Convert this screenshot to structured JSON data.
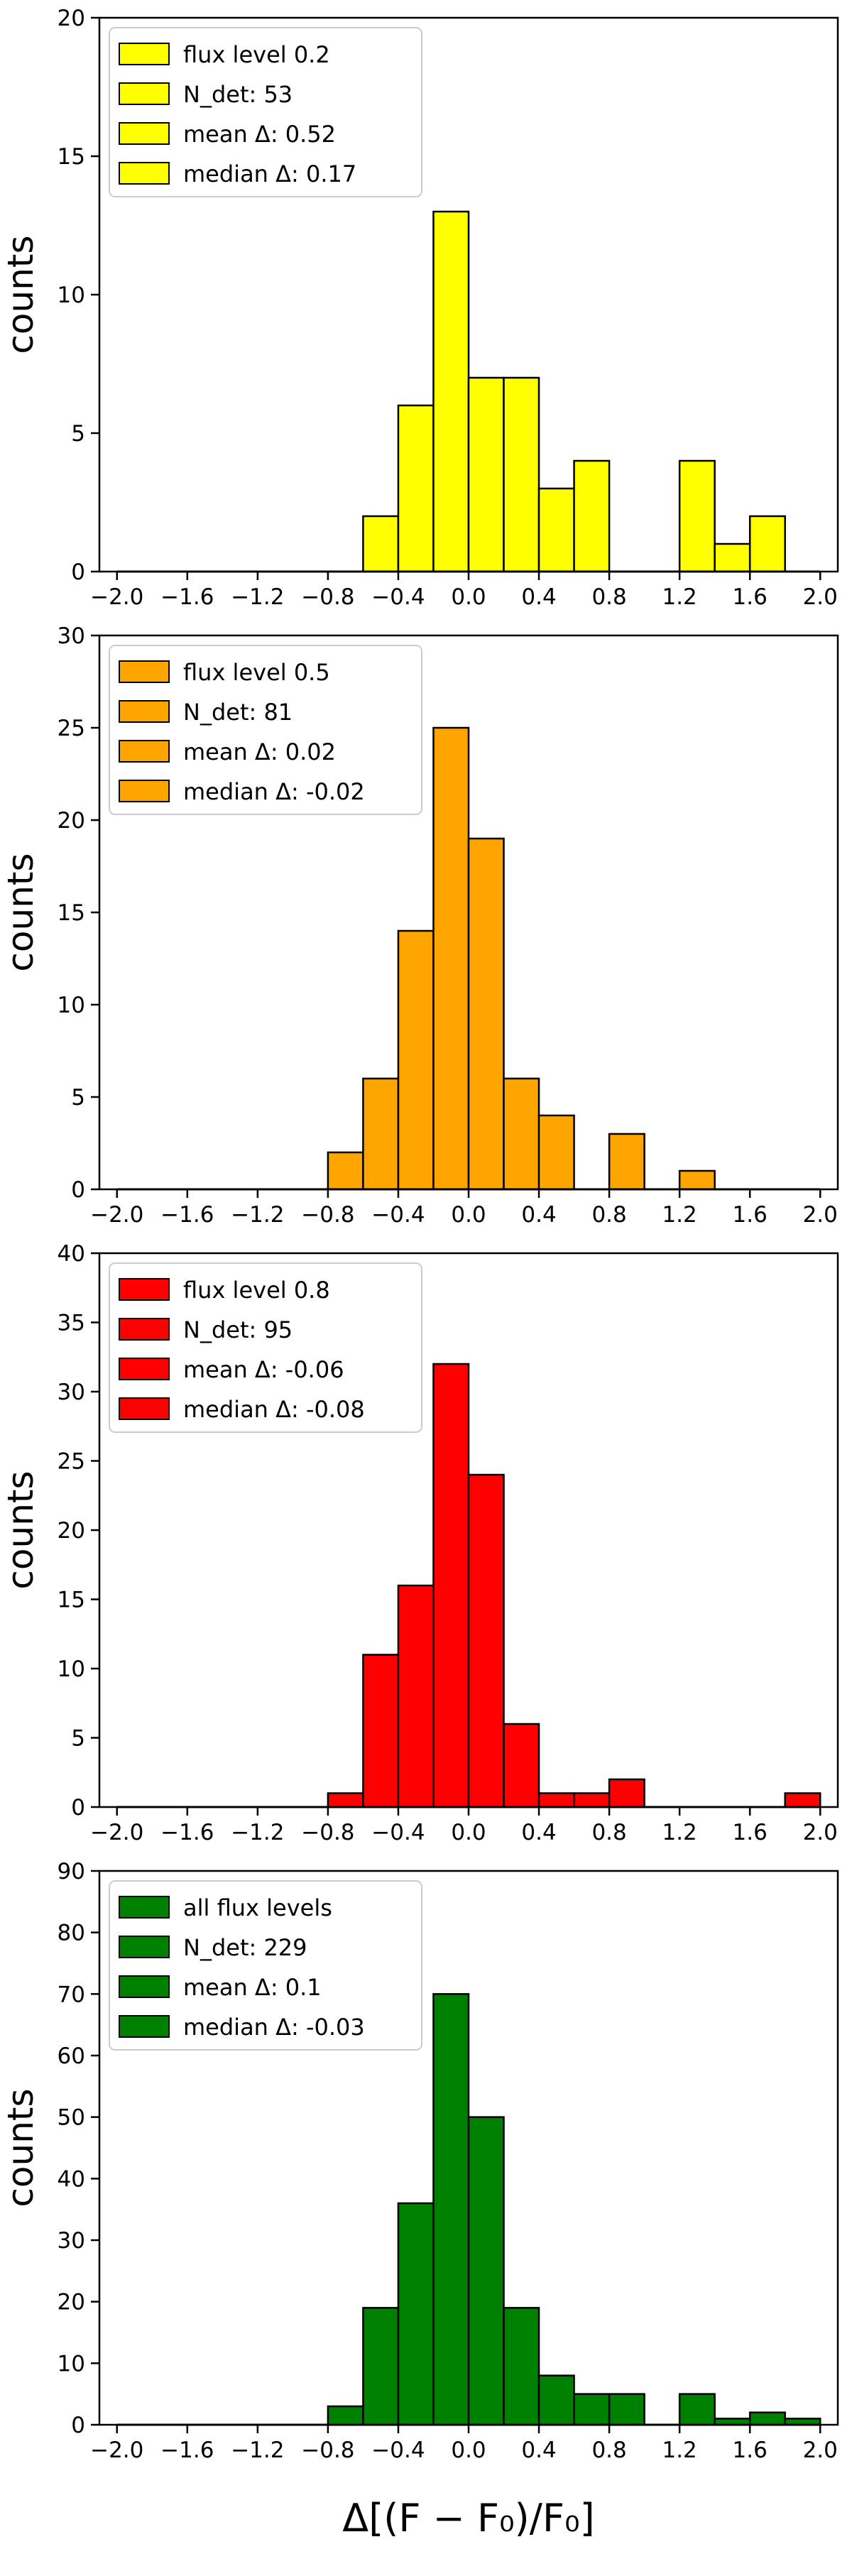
{
  "chart_data": [
    {
      "type": "bar",
      "ylabel": "counts",
      "xlabel": "",
      "xlim": [
        -2.1,
        2.1
      ],
      "ylim": [
        0,
        20
      ],
      "xticks": [
        -2.0,
        -1.6,
        -1.2,
        -0.8,
        -0.4,
        0.0,
        0.4,
        0.8,
        1.2,
        1.6,
        2.0
      ],
      "xtick_labels": [
        "−2.0",
        "−1.6",
        "−1.2",
        "−0.8",
        "−0.4",
        "0.0",
        "0.4",
        "0.8",
        "1.2",
        "1.6",
        "2.0"
      ],
      "yticks": [
        0,
        5,
        10,
        15,
        20
      ],
      "bin_edges": [
        -2.0,
        -1.8,
        -1.6,
        -1.4,
        -1.2,
        -1.0,
        -0.8,
        -0.6,
        -0.4,
        -0.2,
        0.0,
        0.2,
        0.4,
        0.6,
        0.8,
        1.0,
        1.2,
        1.4,
        1.6,
        1.8,
        2.0
      ],
      "values": [
        0,
        0,
        0,
        0,
        0,
        0,
        0,
        2,
        6,
        13,
        7,
        7,
        3,
        4,
        0,
        0,
        4,
        1,
        2,
        0
      ],
      "color": "#ffff00",
      "legend": [
        "flux level 0.2",
        "N_det: 53",
        "mean Δ: 0.52",
        "median Δ: 0.17"
      ],
      "legend_placement": "top-left",
      "grid": false
    },
    {
      "type": "bar",
      "ylabel": "counts",
      "xlabel": "",
      "xlim": [
        -2.1,
        2.1
      ],
      "ylim": [
        0,
        30
      ],
      "xticks": [
        -2.0,
        -1.6,
        -1.2,
        -0.8,
        -0.4,
        0.0,
        0.4,
        0.8,
        1.2,
        1.6,
        2.0
      ],
      "xtick_labels": [
        "−2.0",
        "−1.6",
        "−1.2",
        "−0.8",
        "−0.4",
        "0.0",
        "0.4",
        "0.8",
        "1.2",
        "1.6",
        "2.0"
      ],
      "yticks": [
        0,
        5,
        10,
        15,
        20,
        25,
        30
      ],
      "bin_edges": [
        -2.0,
        -1.8,
        -1.6,
        -1.4,
        -1.2,
        -1.0,
        -0.8,
        -0.6,
        -0.4,
        -0.2,
        0.0,
        0.2,
        0.4,
        0.6,
        0.8,
        1.0,
        1.2,
        1.4,
        1.6,
        1.8,
        2.0
      ],
      "values": [
        0,
        0,
        0,
        0,
        0,
        0,
        2,
        6,
        14,
        25,
        19,
        6,
        4,
        0,
        3,
        0,
        1,
        0,
        0,
        0
      ],
      "color": "#ffa500",
      "legend": [
        "flux level 0.5",
        "N_det: 81",
        "mean Δ: 0.02",
        "median Δ: -0.02"
      ],
      "legend_placement": "top-left",
      "grid": false
    },
    {
      "type": "bar",
      "ylabel": "counts",
      "xlabel": "",
      "xlim": [
        -2.1,
        2.1
      ],
      "ylim": [
        0,
        40
      ],
      "xticks": [
        -2.0,
        -1.6,
        -1.2,
        -0.8,
        -0.4,
        0.0,
        0.4,
        0.8,
        1.2,
        1.6,
        2.0
      ],
      "xtick_labels": [
        "−2.0",
        "−1.6",
        "−1.2",
        "−0.8",
        "−0.4",
        "0.0",
        "0.4",
        "0.8",
        "1.2",
        "1.6",
        "2.0"
      ],
      "yticks": [
        0,
        5,
        10,
        15,
        20,
        25,
        30,
        35,
        40
      ],
      "bin_edges": [
        -2.0,
        -1.8,
        -1.6,
        -1.4,
        -1.2,
        -1.0,
        -0.8,
        -0.6,
        -0.4,
        -0.2,
        0.0,
        0.2,
        0.4,
        0.6,
        0.8,
        1.0,
        1.2,
        1.4,
        1.6,
        1.8,
        2.0
      ],
      "values": [
        0,
        0,
        0,
        0,
        0,
        0,
        1,
        11,
        16,
        32,
        24,
        6,
        1,
        1,
        2,
        0,
        0,
        0,
        0,
        1
      ],
      "color": "#ff0000",
      "legend": [
        "flux level 0.8",
        "N_det: 95",
        "mean Δ: -0.06",
        "median Δ: -0.08"
      ],
      "legend_placement": "top-left",
      "grid": false
    },
    {
      "type": "bar",
      "ylabel": "counts",
      "xlabel": "Δ[(F − F₀)/F₀]",
      "xlim": [
        -2.1,
        2.1
      ],
      "ylim": [
        0,
        90
      ],
      "xticks": [
        -2.0,
        -1.6,
        -1.2,
        -0.8,
        -0.4,
        0.0,
        0.4,
        0.8,
        1.2,
        1.6,
        2.0
      ],
      "xtick_labels": [
        "−2.0",
        "−1.6",
        "−1.2",
        "−0.8",
        "−0.4",
        "0.0",
        "0.4",
        "0.8",
        "1.2",
        "1.6",
        "2.0"
      ],
      "yticks": [
        0,
        10,
        20,
        30,
        40,
        50,
        60,
        70,
        80,
        90
      ],
      "bin_edges": [
        -2.0,
        -1.8,
        -1.6,
        -1.4,
        -1.2,
        -1.0,
        -0.8,
        -0.6,
        -0.4,
        -0.2,
        0.0,
        0.2,
        0.4,
        0.6,
        0.8,
        1.0,
        1.2,
        1.4,
        1.6,
        1.8,
        2.0
      ],
      "values": [
        0,
        0,
        0,
        0,
        0,
        0,
        3,
        19,
        36,
        70,
        50,
        19,
        8,
        5,
        5,
        0,
        5,
        1,
        2,
        1
      ],
      "color": "#008000",
      "legend": [
        "all flux levels",
        "N_det: 229",
        "mean Δ: 0.1",
        "median Δ: -0.03"
      ],
      "legend_placement": "top-left",
      "grid": false
    }
  ]
}
